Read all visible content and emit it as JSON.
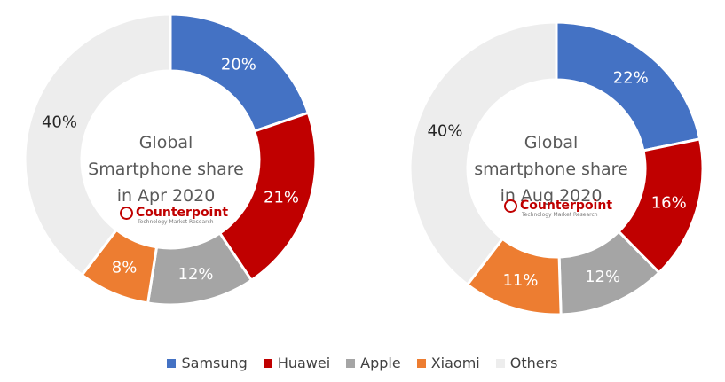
{
  "chart_data": [
    {
      "type": "pie",
      "title": "Global Smartphone share in Apr 2020",
      "logo_text": "Counterpoint",
      "logo_subtext": "Technology Market Research",
      "categories": [
        "Samsung",
        "Huawei",
        "Apple",
        "Xiaomi",
        "Others"
      ],
      "values": [
        20,
        21,
        12,
        8,
        40
      ],
      "value_labels": [
        "20%",
        "21%",
        "12%",
        "8%",
        "40%"
      ],
      "colors": [
        "#4472c4",
        "#c00000",
        "#a5a5a5",
        "#ed7d31",
        "#ededed"
      ]
    },
    {
      "type": "pie",
      "title": "Global smartphone share in Aug 2020",
      "logo_text": "Counterpoint",
      "logo_subtext": "Technology Market Research",
      "categories": [
        "Samsung",
        "Huawei",
        "Apple",
        "Xiaomi",
        "Others"
      ],
      "values": [
        22,
        16,
        12,
        11,
        40
      ],
      "value_labels": [
        "22%",
        "16%",
        "12%",
        "11%",
        "40%"
      ],
      "colors": [
        "#4472c4",
        "#c00000",
        "#a5a5a5",
        "#ed7d31",
        "#ededed"
      ]
    }
  ]
}
